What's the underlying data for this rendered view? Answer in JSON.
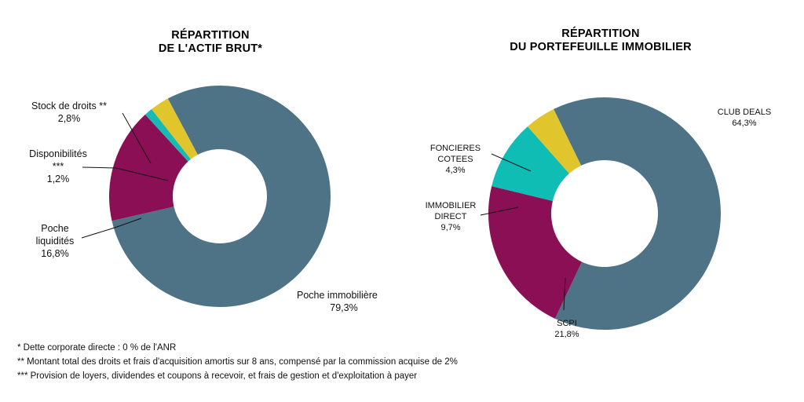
{
  "colors": {
    "immobiliere": "#4e7286",
    "liquidites": "#8b0f55",
    "disponibilites": "#17bbb3",
    "stock_droits": "#e0c52c",
    "club_deals": "#4e7286",
    "scpi": "#8b0f55",
    "immobilier_direct": "#0fbdb5",
    "foncieres_cotees": "#e0c52c"
  },
  "chart_data": [
    {
      "type": "pie",
      "donut": true,
      "title": [
        "RÉPARTITION",
        "DE L'ACTIF BRUT*"
      ],
      "slices": [
        {
          "key": "immobiliere",
          "label": [
            "Poche immobilière"
          ],
          "value": 79.3,
          "value_label": "79,3%"
        },
        {
          "key": "liquidites",
          "label": [
            "Poche",
            "liquidités"
          ],
          "value": 16.8,
          "value_label": "16,8%"
        },
        {
          "key": "disponibilites",
          "label": [
            "Disponibilités",
            "***"
          ],
          "value": 1.2,
          "value_label": "1,2%"
        },
        {
          "key": "stock_droits",
          "label": [
            "Stock de droits **"
          ],
          "value": 2.8,
          "value_label": "2,8%"
        }
      ]
    },
    {
      "type": "pie",
      "donut": true,
      "title": [
        "RÉPARTITION",
        "DU PORTEFEUILLE IMMOBILIER"
      ],
      "slices": [
        {
          "key": "club_deals",
          "label": [
            "CLUB DEALS"
          ],
          "value": 64.3,
          "value_label": "64,3%"
        },
        {
          "key": "scpi",
          "label": [
            "SCPI"
          ],
          "value": 21.8,
          "value_label": "21,8%"
        },
        {
          "key": "immobilier_direct",
          "label": [
            "IMMOBILIER",
            "DIRECT"
          ],
          "value": 9.7,
          "value_label": "9,7%"
        },
        {
          "key": "foncieres_cotees",
          "label": [
            "FONCIERES",
            "COTEES"
          ],
          "value": 4.3,
          "value_label": "4,3%"
        }
      ]
    }
  ],
  "footnotes": [
    "* Dette corporate directe : 0 % de l'ANR",
    "** Montant total des droits et frais d'acquisition amortis sur 8 ans, compensé par la commission acquise de 2%",
    "*** Provision de loyers, dividendes et coupons à recevoir, et frais de gestion et d'exploitation à payer"
  ]
}
